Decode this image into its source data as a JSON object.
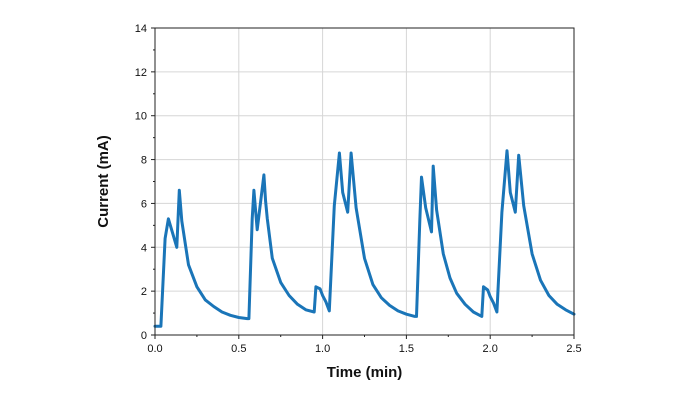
{
  "chart_data": {
    "type": "line",
    "title": "",
    "xlabel": "Time (min)",
    "ylabel": "Current (mA)",
    "xlim": [
      0.0,
      2.5
    ],
    "ylim": [
      0,
      14
    ],
    "xticks": [
      0.0,
      0.5,
      1.0,
      1.5,
      2.0,
      2.5
    ],
    "xtick_labels": [
      "0.0",
      "0.5",
      "1.0",
      "1.5",
      "2.0",
      "2.5"
    ],
    "yticks": [
      0,
      2,
      4,
      6,
      8,
      10,
      12,
      14
    ],
    "ytick_labels": [
      "0",
      "2",
      "4",
      "6",
      "8",
      "10",
      "12",
      "14"
    ],
    "grid": true,
    "legend": "none",
    "series": [
      {
        "color": "#1a75b8",
        "x": [
          0.0,
          0.035,
          0.06,
          0.08,
          0.13,
          0.145,
          0.16,
          0.2,
          0.25,
          0.3,
          0.35,
          0.4,
          0.45,
          0.5,
          0.55,
          0.56,
          0.58,
          0.59,
          0.61,
          0.65,
          0.66,
          0.67,
          0.7,
          0.75,
          0.8,
          0.85,
          0.9,
          0.95,
          0.96,
          0.985,
          1.0,
          1.02,
          1.04,
          1.07,
          1.1,
          1.12,
          1.15,
          1.17,
          1.2,
          1.25,
          1.3,
          1.35,
          1.4,
          1.45,
          1.5,
          1.55,
          1.56,
          1.58,
          1.59,
          1.615,
          1.65,
          1.66,
          1.68,
          1.72,
          1.76,
          1.8,
          1.85,
          1.9,
          1.95,
          1.96,
          1.985,
          2.0,
          2.02,
          2.04,
          2.07,
          2.1,
          2.12,
          2.15,
          2.17,
          2.2,
          2.25,
          2.3,
          2.35,
          2.4,
          2.45,
          2.5
        ],
        "y": [
          0.4,
          0.4,
          4.4,
          5.3,
          4.0,
          6.6,
          5.2,
          3.2,
          2.2,
          1.6,
          1.3,
          1.05,
          0.9,
          0.8,
          0.75,
          0.75,
          5.3,
          6.6,
          4.8,
          7.3,
          6.1,
          5.3,
          3.5,
          2.4,
          1.8,
          1.4,
          1.15,
          1.05,
          2.2,
          2.1,
          1.8,
          1.5,
          1.1,
          5.9,
          8.3,
          6.5,
          5.6,
          8.3,
          5.8,
          3.5,
          2.3,
          1.7,
          1.35,
          1.1,
          0.95,
          0.85,
          0.85,
          5.2,
          7.2,
          5.8,
          4.7,
          7.7,
          5.7,
          3.7,
          2.6,
          1.9,
          1.4,
          1.05,
          0.85,
          2.2,
          2.05,
          1.75,
          1.45,
          1.05,
          5.6,
          8.4,
          6.5,
          5.6,
          8.2,
          5.9,
          3.7,
          2.5,
          1.8,
          1.4,
          1.15,
          0.95
        ]
      }
    ]
  }
}
